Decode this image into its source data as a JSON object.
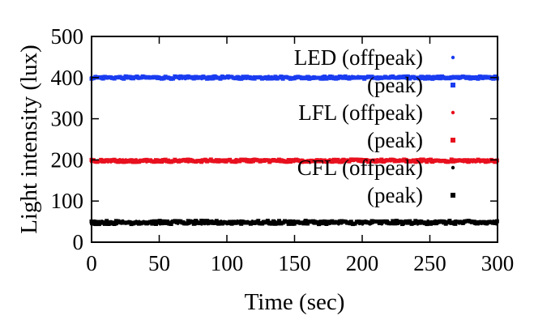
{
  "chart_data": {
    "type": "scatter",
    "title": "",
    "xlabel": "Time (sec)",
    "ylabel": "Light intensity (lux)",
    "xlim": [
      0,
      300
    ],
    "ylim": [
      0,
      500
    ],
    "xticks": [
      "0",
      "50",
      "100",
      "150",
      "200",
      "250",
      "300"
    ],
    "yticks": [
      "0",
      "100",
      "200",
      "300",
      "400",
      "500"
    ],
    "grid": false,
    "legend_position": "top-right",
    "x_range": [
      0,
      300
    ],
    "series": [
      {
        "name": "LED (offpeak)",
        "color": "#1a3cf0",
        "marker": "small-dot",
        "level": 400,
        "spread": 3
      },
      {
        "name": "(peak)",
        "color": "#1a3cf0",
        "marker": "square",
        "level": 400,
        "spread": 3
      },
      {
        "name": "LFL (offpeak)",
        "color": "#e8101e",
        "marker": "small-dot",
        "level": 198,
        "spread": 3
      },
      {
        "name": "(peak)",
        "color": "#e8101e",
        "marker": "square",
        "level": 198,
        "spread": 3
      },
      {
        "name": "CFL (offpeak)",
        "color": "#000000",
        "marker": "small-dot",
        "level": 48,
        "spread": 4
      },
      {
        "name": "(peak)",
        "color": "#000000",
        "marker": "square",
        "level": 48,
        "spread": 4
      }
    ]
  }
}
